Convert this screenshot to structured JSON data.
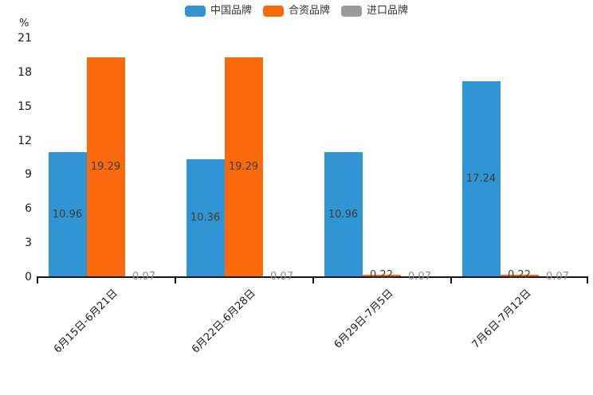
{
  "chart_data": {
    "type": "bar",
    "title": "",
    "xlabel": "",
    "ylabel": "%",
    "categories": [
      "6月15日-6月21日",
      "6月22日-6月28日",
      "6月29日-7月5日",
      "7月6日-7月12日"
    ],
    "series": [
      {
        "name": "中国品牌",
        "color": "#3095d2",
        "label_color": "#3d3d3d",
        "values": [
          10.96,
          10.36,
          10.96,
          17.24
        ]
      },
      {
        "name": "合资品牌",
        "color": "#fa690c",
        "label_color": "#3d3d3d",
        "values": [
          19.29,
          19.29,
          0.22,
          0.22
        ]
      },
      {
        "name": "进口品牌",
        "color": "#9b9b9b",
        "label_color": "#8e8e8e",
        "values": [
          0.07,
          0.07,
          0.07,
          0.07
        ]
      }
    ],
    "ylim": [
      0,
      21
    ],
    "yticks": [
      0,
      3,
      6,
      9,
      12,
      15,
      18,
      21
    ],
    "grid": false,
    "legend_position": "top",
    "value_labels": "inside-center, 2 decimals",
    "axis_color": "#141414"
  }
}
